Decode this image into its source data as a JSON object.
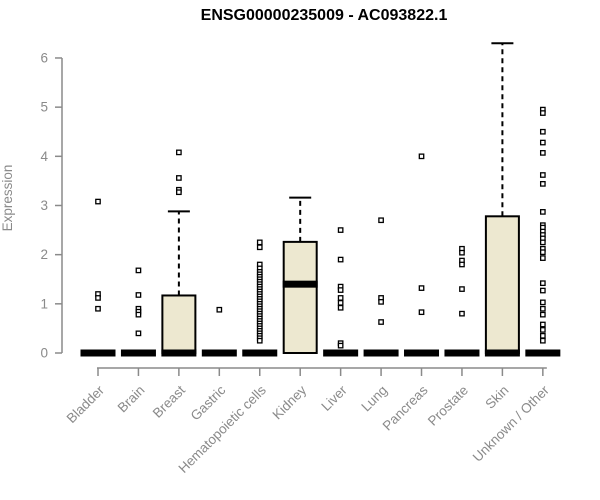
{
  "colors": {
    "background": "#ffffff",
    "box_fill": "#ede8d0",
    "box_stroke": "#000000",
    "axis": "#8a8a8a",
    "tick_label": "#8a8a8a",
    "title": "#000000"
  },
  "chart_data": {
    "type": "boxplot",
    "title": "ENSG00000235009 - AC093822.1",
    "ylabel": "Expression",
    "xlabel": "",
    "ylim": [
      0,
      6.4
    ],
    "yticks": [
      0,
      1,
      2,
      3,
      4,
      5,
      6
    ],
    "grid": false,
    "legend": false,
    "outlier_marker": "open-square",
    "whisker_style": "dashed",
    "categories": [
      "Bladder",
      "Brain",
      "Breast",
      "Gastric",
      "Hematopoietic cells",
      "Kidney",
      "Liver",
      "Lung",
      "Pancreas",
      "Prostate",
      "Skin",
      "Unknown / Other"
    ],
    "boxes": [
      {
        "category": "Bladder",
        "q1": 0,
        "median": 0,
        "q3": 0,
        "whisker_low": 0,
        "whisker_high": 0,
        "outliers": [
          3.08,
          1.2,
          1.12,
          0.9
        ]
      },
      {
        "category": "Brain",
        "q1": 0,
        "median": 0,
        "q3": 0,
        "whisker_low": 0,
        "whisker_high": 0,
        "outliers": [
          1.68,
          1.18,
          0.9,
          0.84,
          0.78,
          0.4
        ]
      },
      {
        "category": "Breast",
        "q1": 0,
        "median": 0,
        "q3": 1.17,
        "whisker_low": 0,
        "whisker_high": 2.88,
        "outliers": [
          4.08,
          3.56,
          3.32,
          3.27
        ]
      },
      {
        "category": "Gastric",
        "q1": 0,
        "median": 0,
        "q3": 0,
        "whisker_low": 0,
        "whisker_high": 0,
        "outliers": [
          0.88
        ]
      },
      {
        "category": "Hematopoietic cells",
        "q1": 0,
        "median": 0,
        "q3": 0,
        "whisker_low": 0,
        "whisker_high": 0,
        "outliers": [
          2.25,
          2.15,
          1.8,
          1.72,
          1.65,
          1.6,
          1.55,
          1.5,
          1.45,
          1.4,
          1.35,
          1.3,
          1.25,
          1.2,
          1.15,
          1.1,
          1.05,
          1.0,
          0.95,
          0.9,
          0.85,
          0.8,
          0.75,
          0.7,
          0.65,
          0.6,
          0.55,
          0.5,
          0.45,
          0.4,
          0.35,
          0.3,
          0.25
        ]
      },
      {
        "category": "Kidney",
        "q1": 0,
        "median": 1.4,
        "q3": 2.26,
        "whisker_low": 0,
        "whisker_high": 3.16,
        "outliers": []
      },
      {
        "category": "Liver",
        "q1": 0,
        "median": 0,
        "q3": 0,
        "whisker_low": 0,
        "whisker_high": 0,
        "outliers": [
          2.5,
          1.9,
          1.35,
          1.28,
          1.12,
          1.02,
          0.92,
          0.2,
          0.15
        ]
      },
      {
        "category": "Lung",
        "q1": 0,
        "median": 0,
        "q3": 0,
        "whisker_low": 0,
        "whisker_high": 0,
        "outliers": [
          2.7,
          1.12,
          1.04,
          0.63
        ]
      },
      {
        "category": "Pancreas",
        "q1": 0,
        "median": 0,
        "q3": 0,
        "whisker_low": 0,
        "whisker_high": 0,
        "outliers": [
          4.0,
          1.32,
          0.83
        ]
      },
      {
        "category": "Prostate",
        "q1": 0,
        "median": 0,
        "q3": 0,
        "whisker_low": 0,
        "whisker_high": 0,
        "outliers": [
          2.12,
          2.04,
          1.88,
          1.8,
          1.3,
          0.8
        ]
      },
      {
        "category": "Skin",
        "q1": 0,
        "median": 0,
        "q3": 2.78,
        "whisker_low": 0,
        "whisker_high": 6.3,
        "outliers": []
      },
      {
        "category": "Unknown / Other",
        "q1": 0,
        "median": 0,
        "q3": 0,
        "whisker_low": 0,
        "whisker_high": 0,
        "outliers": [
          4.95,
          4.88,
          4.5,
          4.28,
          4.07,
          3.62,
          3.44,
          2.87,
          2.6,
          2.55,
          2.47,
          2.4,
          2.33,
          2.25,
          2.12,
          2.05,
          1.93,
          1.42,
          1.27,
          1.03,
          0.9,
          0.78,
          0.58,
          0.47,
          0.35,
          0.25
        ]
      }
    ]
  }
}
